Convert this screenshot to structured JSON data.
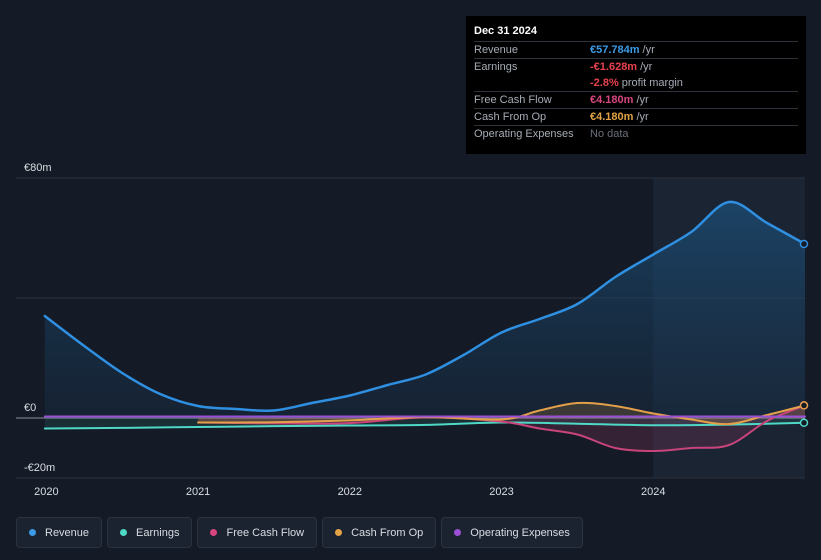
{
  "tooltip": {
    "date": "Dec 31 2024",
    "rows": [
      {
        "label": "Revenue",
        "value": "€57.784m",
        "unit": "/yr",
        "color": "#3b9be6"
      },
      {
        "label": "Earnings",
        "value": "-€1.628m",
        "unit": "/yr",
        "color": "#e8424e"
      },
      {
        "label": "",
        "value": "-2.8%",
        "unit": "profit margin",
        "color": "#e8424e"
      },
      {
        "label": "Free Cash Flow",
        "value": "€4.180m",
        "unit": "/yr",
        "color": "#d9467f"
      },
      {
        "label": "Cash From Op",
        "value": "€4.180m",
        "unit": "/yr",
        "color": "#e3a347"
      },
      {
        "label": "Operating Expenses",
        "value": "No data",
        "unit": "",
        "color": "#6b717a"
      }
    ]
  },
  "chart_data": {
    "type": "line",
    "y_tick_labels": [
      "€80m",
      "€0",
      "-€20m"
    ],
    "y_ticks": [
      80,
      0,
      -20
    ],
    "ylim": [
      -20,
      80
    ],
    "x_tick_labels": [
      "2020",
      "2021",
      "2022",
      "2023",
      "2024"
    ],
    "x_ticks": [
      2020.0,
      2021.0,
      2022.0,
      2023.0,
      2024.0
    ],
    "xlim": [
      2019.8,
      2025.0
    ],
    "highlight_start": 2024.0,
    "series": [
      {
        "name": "Revenue",
        "color": "#2f8fe0",
        "x": [
          2019.99,
          2020.25,
          2020.5,
          2020.75,
          2021.0,
          2021.25,
          2021.5,
          2021.75,
          2022.0,
          2022.25,
          2022.5,
          2022.75,
          2023.0,
          2023.25,
          2023.5,
          2023.75,
          2024.0,
          2024.25,
          2024.5,
          2024.75,
          2025.0
        ],
        "y": [
          34,
          24,
          15,
          8,
          4,
          3,
          2.5,
          5,
          7.5,
          11,
          14.5,
          21,
          28.5,
          33,
          38,
          47,
          54.5,
          62,
          72,
          65,
          58
        ]
      },
      {
        "name": "Earnings",
        "color": "#4fd8c5",
        "x": [
          2019.99,
          2020.5,
          2021.0,
          2021.5,
          2022.0,
          2022.5,
          2023.0,
          2023.5,
          2024.0,
          2024.5,
          2025.0
        ],
        "y": [
          -3.5,
          -3.3,
          -3.0,
          -2.7,
          -2.5,
          -2.3,
          -1.5,
          -1.9,
          -2.4,
          -2.2,
          -1.6
        ]
      },
      {
        "name": "Free Cash Flow",
        "color": "#c8447b",
        "x": [
          2021.0,
          2021.5,
          2022.0,
          2022.5,
          2023.0,
          2023.25,
          2023.5,
          2023.75,
          2024.0,
          2024.25,
          2024.5,
          2024.75,
          2025.0
        ],
        "y": [
          -1.5,
          -1.8,
          -1.7,
          0.2,
          -1.2,
          -3.5,
          -5.5,
          -10.0,
          -11.0,
          -10.0,
          -9.0,
          -1.0,
          4.2
        ]
      },
      {
        "name": "Cash From Op",
        "color": "#e3a04a",
        "x": [
          2021.0,
          2021.5,
          2022.0,
          2022.5,
          2023.0,
          2023.25,
          2023.5,
          2023.75,
          2024.0,
          2024.25,
          2024.5,
          2024.75,
          2025.0
        ],
        "y": [
          -1.5,
          -1.4,
          -0.8,
          0.3,
          -0.5,
          2.5,
          5.0,
          4.0,
          1.5,
          -0.5,
          -2.0,
          1.0,
          4.2
        ]
      },
      {
        "name": "Operating Expenses",
        "color": "#9b4fd6",
        "x": [
          2019.99,
          2020.5,
          2021.0,
          2021.5,
          2022.0,
          2022.5,
          2023.0,
          2023.5,
          2024.0,
          2024.5,
          2025.0
        ],
        "y": [
          0.5,
          0.5,
          0.5,
          0.5,
          0.5,
          0.5,
          0.5,
          0.5,
          0.5,
          0.5,
          0.5
        ]
      }
    ]
  },
  "legend": [
    {
      "label": "Revenue",
      "color": "#3b9be6"
    },
    {
      "label": "Earnings",
      "color": "#4fd8c5"
    },
    {
      "label": "Free Cash Flow",
      "color": "#d9467f"
    },
    {
      "label": "Cash From Op",
      "color": "#e3a347"
    },
    {
      "label": "Operating Expenses",
      "color": "#9b4fd6"
    }
  ]
}
